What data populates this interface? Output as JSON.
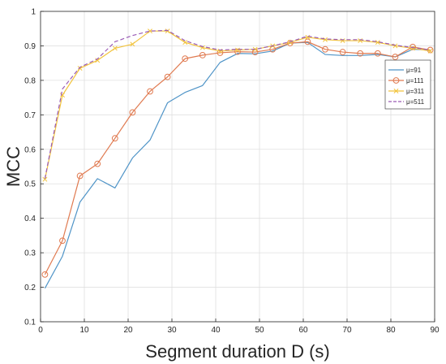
{
  "chart_data": {
    "type": "line",
    "xlabel": "Segment duration D (s)",
    "ylabel": "MCC",
    "xlim": [
      0,
      90
    ],
    "ylim": [
      0.1,
      1
    ],
    "xticks": [
      0,
      10,
      20,
      30,
      40,
      50,
      60,
      70,
      80,
      90
    ],
    "yticks": [
      0.1,
      0.2,
      0.3,
      0.4,
      0.5,
      0.6,
      0.7,
      0.8,
      0.9,
      1
    ],
    "grid": true,
    "legend_position": "right",
    "x": [
      1,
      5,
      9,
      13,
      17,
      21,
      25,
      29,
      33,
      37,
      41,
      45,
      49,
      53,
      57,
      61,
      65,
      69,
      73,
      77,
      81,
      85,
      89
    ],
    "series": [
      {
        "name": "μ=91",
        "color": "#4f94c7",
        "style": "solid",
        "marker": "none",
        "values": [
          0.197,
          0.29,
          0.447,
          0.515,
          0.488,
          0.575,
          0.627,
          0.735,
          0.765,
          0.785,
          0.852,
          0.878,
          0.877,
          0.885,
          0.908,
          0.91,
          0.875,
          0.872,
          0.872,
          0.875,
          0.868,
          0.89,
          0.888
        ]
      },
      {
        "name": "μ=111",
        "color": "#e07a50",
        "style": "solid",
        "marker": "circle",
        "values": [
          0.237,
          0.335,
          0.523,
          0.558,
          0.632,
          0.707,
          0.768,
          0.81,
          0.863,
          0.873,
          0.88,
          0.883,
          0.882,
          0.89,
          0.908,
          0.912,
          0.89,
          0.882,
          0.878,
          0.878,
          0.868,
          0.897,
          0.888
        ]
      },
      {
        "name": "μ=311",
        "color": "#f2c43d",
        "style": "solid",
        "marker": "x",
        "values": [
          0.513,
          0.757,
          0.835,
          0.858,
          0.893,
          0.905,
          0.943,
          0.943,
          0.91,
          0.895,
          0.885,
          0.888,
          0.89,
          0.9,
          0.91,
          0.925,
          0.918,
          0.915,
          0.915,
          0.91,
          0.9,
          0.893,
          0.885
        ]
      },
      {
        "name": "μ=511",
        "color": "#9a5bb5",
        "style": "dashed",
        "marker": "none",
        "values": [
          0.515,
          0.775,
          0.838,
          0.862,
          0.912,
          0.93,
          0.943,
          0.945,
          0.915,
          0.898,
          0.888,
          0.89,
          0.89,
          0.9,
          0.912,
          0.928,
          0.92,
          0.918,
          0.918,
          0.912,
          0.902,
          0.895,
          0.888
        ]
      }
    ]
  }
}
